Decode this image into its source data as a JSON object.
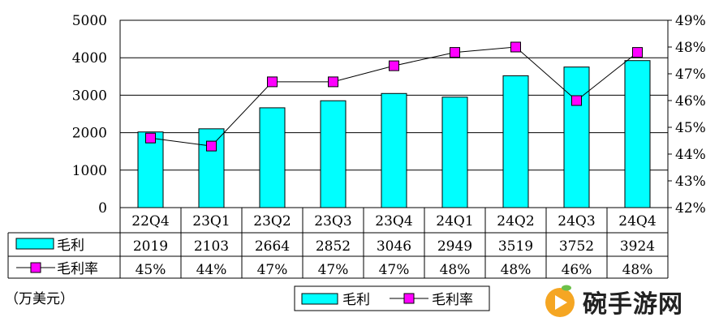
{
  "chart_data": {
    "type": "bar",
    "categories": [
      "22Q4",
      "23Q1",
      "23Q2",
      "23Q3",
      "23Q4",
      "24Q1",
      "24Q2",
      "24Q3",
      "24Q4"
    ],
    "series": [
      {
        "name": "毛利",
        "type": "bar",
        "axis": "left",
        "values": [
          2019,
          2103,
          2664,
          2852,
          3046,
          2949,
          3519,
          3752,
          3924
        ],
        "color": "#00FFFF"
      },
      {
        "name": "毛利率",
        "type": "line",
        "axis": "right",
        "values": [
          44.6,
          44.3,
          46.7,
          46.7,
          47.3,
          47.8,
          48.0,
          46.0,
          47.8
        ],
        "color": "#FF00FF"
      }
    ],
    "table_rows": [
      [
        "2019",
        "2103",
        "2664",
        "2852",
        "3046",
        "2949",
        "3519",
        "3752",
        "3924"
      ],
      [
        "45%",
        "44%",
        "47%",
        "47%",
        "47%",
        "48%",
        "48%",
        "46%",
        "48%"
      ]
    ],
    "ylim_left": [
      0,
      5000
    ],
    "yticks_left": [
      "0",
      "1000",
      "2000",
      "3000",
      "4000",
      "5000"
    ],
    "ylim_right": [
      42,
      49
    ],
    "yticks_right": [
      "42%",
      "43%",
      "44%",
      "45%",
      "46%",
      "47%",
      "48%",
      "49%"
    ],
    "unit_label": "（万美元）",
    "grid": true,
    "legend_position": "bottom-center"
  },
  "watermark": {
    "text": "碗手游网",
    "icon": "play-button-icon"
  }
}
